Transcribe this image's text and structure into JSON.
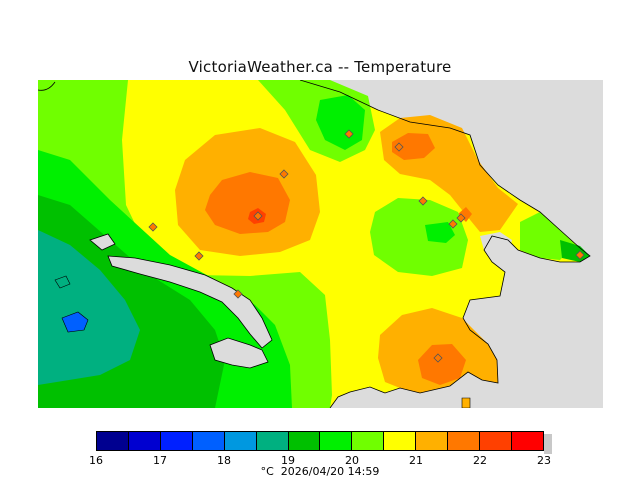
{
  "title": "VictoriaWeather.ca -- Temperature",
  "colorbar": {
    "colors": [
      "#000090",
      "#0000d0",
      "#0020ff",
      "#0060ff",
      "#0098e0",
      "#00b080",
      "#00c000",
      "#00f000",
      "#70ff00",
      "#ffff00",
      "#ffb000",
      "#ff7800",
      "#ff4000",
      "#ff0000"
    ],
    "ticks": [
      "16",
      "17",
      "18",
      "19",
      "20",
      "21",
      "22",
      "23"
    ]
  },
  "footer": {
    "unit": "°C",
    "timestamp": "2026/04/20 14:59"
  },
  "icons": {
    "station": "station-marker-icon"
  }
}
